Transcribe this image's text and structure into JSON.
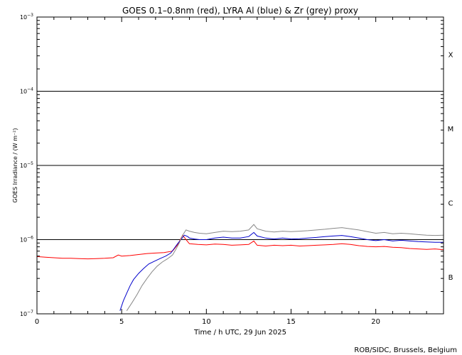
{
  "chart_data": {
    "type": "line",
    "title": "GOES 0.1–0.8nm (red), LYRA Al (blue) & Zr (grey) proxy",
    "xlabel": "Time / h UTC, 29 Jun 2025",
    "ylabel": "GOES Irradiance / (W m⁻²)",
    "xlim": [
      0,
      24
    ],
    "ylim": [
      1e-07,
      0.001
    ],
    "yscale": "log",
    "x_ticks": [
      {
        "value": 0,
        "label": "0"
      },
      {
        "value": 5,
        "label": "5"
      },
      {
        "value": 10,
        "label": "10"
      },
      {
        "value": 15,
        "label": "15"
      },
      {
        "value": 20,
        "label": "20"
      }
    ],
    "y_ticks": [
      {
        "exp": -7,
        "base": "10",
        "sup": "−7"
      },
      {
        "exp": -6,
        "base": "10",
        "sup": "−6"
      },
      {
        "exp": -5,
        "base": "10",
        "sup": "−5"
      },
      {
        "exp": -4,
        "base": "10",
        "sup": "−4"
      },
      {
        "exp": -3,
        "base": "10",
        "sup": "−3"
      }
    ],
    "flare_thresholds": [
      1e-06,
      1e-05,
      0.0001
    ],
    "flare_classes": [
      {
        "label": "X",
        "center_exp": -3.5
      },
      {
        "label": "M",
        "center_exp": -4.5
      },
      {
        "label": "C",
        "center_exp": -5.5
      },
      {
        "label": "B",
        "center_exp": -6.5
      }
    ],
    "series": [
      {
        "name": "GOES 0.1-0.8nm",
        "color": "#ff0000",
        "x": [
          0,
          0.5,
          1,
          1.5,
          2,
          2.5,
          3,
          3.5,
          4,
          4.5,
          4.8,
          5,
          5.5,
          6,
          6.5,
          7,
          7.5,
          8,
          8.3,
          8.6,
          8.8,
          9,
          9.5,
          10,
          10.5,
          11,
          11.5,
          12,
          12.5,
          12.8,
          13,
          13.5,
          14,
          14.5,
          15,
          15.5,
          16,
          16.5,
          17,
          17.5,
          18,
          18.5,
          19,
          19.5,
          20,
          20.5,
          21,
          21.5,
          22,
          22.5,
          23,
          23.5,
          24
        ],
        "y": [
          5.9e-07,
          5.8e-07,
          5.7e-07,
          5.6e-07,
          5.6e-07,
          5.55e-07,
          5.5e-07,
          5.55e-07,
          5.6e-07,
          5.7e-07,
          6.2e-07,
          6e-07,
          6.1e-07,
          6.3e-07,
          6.5e-07,
          6.6e-07,
          6.7e-07,
          7e-07,
          8.5e-07,
          1.15e-06,
          1e-06,
          8.8e-07,
          8.6e-07,
          8.5e-07,
          8.7e-07,
          8.6e-07,
          8.4e-07,
          8.5e-07,
          8.6e-07,
          9.6e-07,
          8.4e-07,
          8.2e-07,
          8.4e-07,
          8.3e-07,
          8.4e-07,
          8.2e-07,
          8.3e-07,
          8.4e-07,
          8.5e-07,
          8.6e-07,
          8.8e-07,
          8.6e-07,
          8.3e-07,
          8.1e-07,
          8e-07,
          8.1e-07,
          7.9e-07,
          7.8e-07,
          7.6e-07,
          7.5e-07,
          7.4e-07,
          7.5e-07,
          7.3e-07
        ]
      },
      {
        "name": "LYRA Al proxy",
        "color": "#0000cc",
        "x": [
          4.9,
          5.1,
          5.3,
          5.5,
          5.7,
          6.0,
          6.3,
          6.6,
          7.0,
          7.3,
          7.6,
          7.9,
          8.1,
          8.3,
          8.5,
          8.7,
          8.9,
          9.0,
          9.3,
          9.6,
          10,
          10.5,
          11,
          11.5,
          12,
          12.5,
          12.8,
          13,
          13.5,
          14,
          14.5,
          15,
          15.5,
          16,
          16.5,
          17,
          17.5,
          18,
          18.5,
          19,
          19.5,
          20,
          20.5,
          21,
          21.5,
          22,
          22.5,
          23,
          23.5,
          24
        ],
        "y": [
          1.1e-07,
          1.5e-07,
          1.9e-07,
          2.4e-07,
          2.9e-07,
          3.5e-07,
          4.1e-07,
          4.7e-07,
          5.2e-07,
          5.6e-07,
          6e-07,
          6.6e-07,
          7.6e-07,
          8.8e-07,
          1e-06,
          1.15e-06,
          1.1e-06,
          1.05e-06,
          1.02e-06,
          1e-06,
          1e-06,
          1.05e-06,
          1.08e-06,
          1.05e-06,
          1.05e-06,
          1.1e-06,
          1.25e-06,
          1.12e-06,
          1.05e-06,
          1.02e-06,
          1.05e-06,
          1.02e-06,
          1.03e-06,
          1.05e-06,
          1.07e-06,
          1.1e-06,
          1.12e-06,
          1.14e-06,
          1.1e-06,
          1.05e-06,
          1e-06,
          9.7e-07,
          1e-06,
          9.6e-07,
          9.8e-07,
          9.6e-07,
          9.4e-07,
          9.3e-07,
          9.2e-07,
          9.2e-07
        ]
      },
      {
        "name": "LYRA Zr proxy",
        "color": "#888888",
        "x": [
          5.3,
          5.6,
          5.9,
          6.2,
          6.5,
          6.8,
          7.1,
          7.4,
          7.7,
          8.0,
          8.2,
          8.4,
          8.6,
          8.8,
          9.0,
          9.3,
          9.6,
          10,
          10.5,
          11,
          11.5,
          12,
          12.5,
          12.8,
          13,
          13.5,
          14,
          14.5,
          15,
          15.5,
          16,
          16.5,
          17,
          17.5,
          18,
          18.5,
          19,
          19.5,
          20,
          20.5,
          21,
          21.5,
          22,
          22.5,
          23,
          23.5,
          24
        ],
        "y": [
          1.1e-07,
          1.4e-07,
          1.8e-07,
          2.4e-07,
          3e-07,
          3.7e-07,
          4.4e-07,
          5e-07,
          5.5e-07,
          6.2e-07,
          7.4e-07,
          9e-07,
          1.15e-06,
          1.35e-06,
          1.3e-06,
          1.25e-06,
          1.22e-06,
          1.2e-06,
          1.25e-06,
          1.3e-06,
          1.28e-06,
          1.3e-06,
          1.35e-06,
          1.6e-06,
          1.4e-06,
          1.3e-06,
          1.27e-06,
          1.3e-06,
          1.28e-06,
          1.3e-06,
          1.32e-06,
          1.35e-06,
          1.38e-06,
          1.42e-06,
          1.45e-06,
          1.4e-06,
          1.35e-06,
          1.28e-06,
          1.22e-06,
          1.25e-06,
          1.2e-06,
          1.22e-06,
          1.2e-06,
          1.17e-06,
          1.15e-06,
          1.14e-06,
          1.15e-06
        ]
      }
    ],
    "credit": "ROB/SIDC, Brussels, Belgium"
  }
}
